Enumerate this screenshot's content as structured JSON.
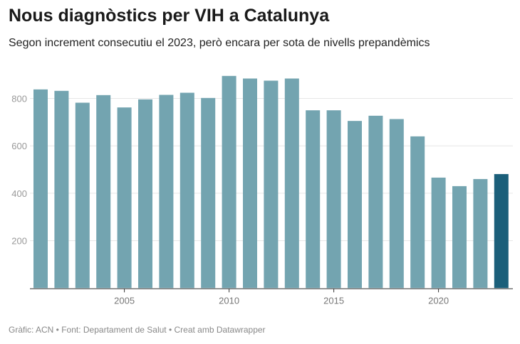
{
  "title": "Nous diagnòstics per VIH a Catalunya",
  "subtitle": "Segon increment consecutiu el 2023, però encara per sota de nivells prepandèmics",
  "footer": "Gràfic: ACN • Font: Departament de Salut • Creat amb Datawrapper",
  "colors": {
    "bar": "#73a4b0",
    "highlight": "#1b5f7a",
    "grid": "#e6e6e6"
  },
  "chart_data": {
    "type": "bar",
    "categories": [
      2001,
      2002,
      2003,
      2004,
      2005,
      2006,
      2007,
      2008,
      2009,
      2010,
      2011,
      2012,
      2013,
      2014,
      2015,
      2016,
      2017,
      2018,
      2019,
      2020,
      2021,
      2022,
      2023
    ],
    "values": [
      838,
      832,
      782,
      814,
      762,
      796,
      815,
      824,
      802,
      895,
      884,
      875,
      884,
      750,
      750,
      705,
      727,
      713,
      640,
      466,
      430,
      460,
      481
    ],
    "highlighted": 2023,
    "ylim": [
      0,
      900
    ],
    "yticks": [
      200,
      400,
      600,
      800
    ],
    "xticks": [
      2005,
      2010,
      2015,
      2020
    ],
    "grid": true
  }
}
